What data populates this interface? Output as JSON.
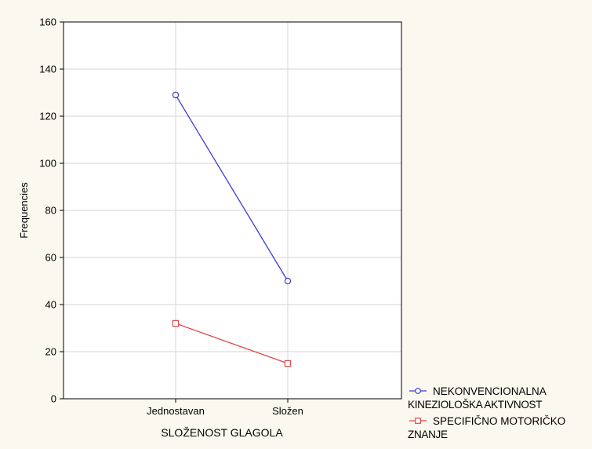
{
  "chart_data": {
    "type": "line",
    "xlabel": "SLOŽENOST GLAGOLA",
    "ylabel": "Frequencies",
    "categories": [
      "Jednostavan",
      "Složen"
    ],
    "ylim": [
      0,
      160
    ],
    "y_ticks": [
      "0",
      "20",
      "40",
      "60",
      "80",
      "100",
      "120",
      "140",
      "160"
    ],
    "grid": true,
    "legend_position": "bottom-right",
    "series": [
      {
        "name": "NEKONVENCIONALNA KINEZIOLOŠKA AKTIVNOST",
        "legend_lines": [
          "NEKONVENCIONALNA",
          "KINEZIOLOŠKA AKTIVNOST"
        ],
        "values": [
          129,
          50
        ],
        "color": "#3c3cd6",
        "marker": "circle"
      },
      {
        "name": "SPECIFIČNO MOTORIČKO ZNANJE",
        "legend_lines": [
          "SPECIFIČNO MOTORIČKO",
          "ZNANJE"
        ],
        "values": [
          32,
          15
        ],
        "color": "#e04848",
        "marker": "square"
      }
    ]
  }
}
